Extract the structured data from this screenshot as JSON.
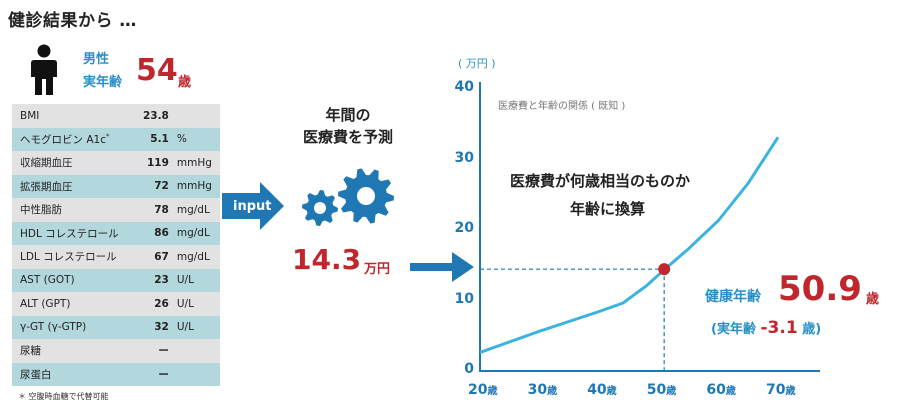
{
  "header": {
    "title": "健診結果から …"
  },
  "person": {
    "sex": "男性",
    "age_label": "実年齢",
    "age_value": "54",
    "age_unit": "歳"
  },
  "labs": [
    {
      "name": "BMI",
      "value": "23.8",
      "unit": ""
    },
    {
      "name": "ヘモグロビン A1c",
      "sup": "*",
      "value": "5.1",
      "unit": "%"
    },
    {
      "name": "収縮期血圧",
      "value": "119",
      "unit": "mmHg"
    },
    {
      "name": "拡張期血圧",
      "value": "72",
      "unit": "mmHg"
    },
    {
      "name": "中性脂肪",
      "value": "78",
      "unit": "mg/dL"
    },
    {
      "name": "HDL コレステロール",
      "value": "86",
      "unit": "mg/dL"
    },
    {
      "name": "LDL コレステロール",
      "value": "67",
      "unit": "mg/dL"
    },
    {
      "name": "AST (GOT)",
      "value": "23",
      "unit": "U/L"
    },
    {
      "name": "ALT (GPT)",
      "value": "26",
      "unit": "U/L"
    },
    {
      "name": "γ-GT (γ-GTP)",
      "value": "32",
      "unit": "U/L"
    },
    {
      "name": "尿糖",
      "value": "ー",
      "unit": ""
    },
    {
      "name": "尿蛋白",
      "value": "ー",
      "unit": ""
    }
  ],
  "footnote": "＊ 空腹時血糖で代替可能",
  "input_label": "input",
  "prediction": {
    "line1": "年間の",
    "line2": "医療費を予測",
    "cost_value": "14.3",
    "cost_unit": "万円"
  },
  "colors": {
    "accent_blue": "#2a8fc9",
    "arrow_blue": "#1f78b4",
    "red": "#c0272d",
    "line": "#3bb3e0"
  },
  "chart_data": {
    "type": "line",
    "title": "医療費と年齢の関係 ( 既知 )",
    "ylabel": "( 万円 )",
    "xlabel": "",
    "x_ticks": [
      "20",
      "30",
      "40",
      "50",
      "60",
      "70"
    ],
    "x_tick_unit": "歳",
    "y_ticks": [
      "0",
      "10",
      "20",
      "30",
      "40"
    ],
    "xlim": [
      20,
      72
    ],
    "ylim": [
      0,
      40
    ],
    "grid": false,
    "series": [
      {
        "x": [
          20,
          30,
          40,
          44,
          48,
          51,
          55,
          60,
          65,
          70
        ],
        "y": [
          2.5,
          5.5,
          8.3,
          9.5,
          12,
          14.3,
          17.2,
          21.2,
          26.5,
          33
        ]
      }
    ],
    "highlight": {
      "x": 50.9,
      "y": 14.3
    },
    "annotation": {
      "line1": "医療費が何歳相当のものか",
      "line2": "年齢に換算"
    },
    "result": {
      "label": "健康年齢",
      "value": "50.9",
      "unit": "歳",
      "diff_open": "(実年齢",
      "diff_value": "-3.1",
      "diff_close": "歳)"
    }
  }
}
